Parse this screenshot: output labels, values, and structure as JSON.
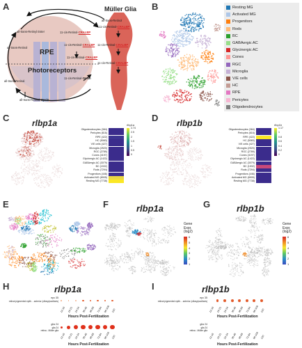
{
  "panels": {
    "A": "A",
    "B": "B",
    "C": "C",
    "D": "D",
    "E": "E",
    "F": "F",
    "G": "G",
    "H": "H",
    "I": "I"
  },
  "panel_a": {
    "muller_title": "Müller Glia",
    "rpe": "RPE",
    "photoreceptors": "Photoreceptors",
    "labels": {
      "ester": "all-trans-Retinyl Ester",
      "cis_ret_cralbp": "11-cis-Retinol-",
      "retinol": "all-trans-Retinol",
      "cis_ret_cralbp2": "11-cis-Retinol-",
      "cis_ret_cralbp_m1": "11-cis-Retinol-",
      "cis_ral_cralbp_m": "11-cis-Retinal-",
      "cis_ral_cralbp_m2": "11-cis-Retinal-",
      "cis_ral_cralbp_rpe": "11-cis-Retinal-",
      "retinal": "all-trans-Retinal",
      "cis_ral_opsin": "11-cis-Retinal-",
      "ret_opsin": "all-trans-Retinal-",
      "mg_retinol": "all-trans-Retinol",
      "cralbp": "CRALBP",
      "opsin": "Opsin"
    }
  },
  "legend_b": [
    {
      "label": "Resting MG",
      "color": "#1f77b4"
    },
    {
      "label": "Activated MG",
      "color": "#aec7e8"
    },
    {
      "label": "Progenitors",
      "color": "#ff7f0e"
    },
    {
      "label": "Rods",
      "color": "#ffbb78"
    },
    {
      "label": "BC",
      "color": "#2ca02c"
    },
    {
      "label": "GABAergic AC",
      "color": "#98df8a"
    },
    {
      "label": "Glycinergic AC",
      "color": "#d62728"
    },
    {
      "label": "Cones",
      "color": "#ff9896"
    },
    {
      "label": "RGC",
      "color": "#9467bd"
    },
    {
      "label": "Microglia",
      "color": "#c5b0d5"
    },
    {
      "label": "V/E cells",
      "color": "#8c564b"
    },
    {
      "label": "HC",
      "color": "#c49c94"
    },
    {
      "label": "RPE",
      "color": "#e377c2"
    },
    {
      "label": "Pericytes",
      "color": "#f7b6d2"
    },
    {
      "label": "Oligodendrocytes",
      "color": "#7f7f7f"
    }
  ],
  "panel_c": {
    "gene": "rlbp1a",
    "scale_title": "rlbp1a",
    "scale_ticks": [
      "2.74",
      "2.5",
      "2",
      "1.5",
      "1",
      "0.5",
      "0"
    ],
    "rows": [
      "Oligodendrocytes (384)",
      "Pericytes (616)",
      "RPE (422)",
      "HC (5083)",
      "V/E cells (427)",
      "Microglia (2520)",
      "RGC (2789)",
      "Cones (4197)",
      "Glycinergic AC (1422)",
      "GABAergic AC (3079)",
      "BC (1532)",
      "Rods (7294)",
      "Progenitors (446)",
      "Activated MG (8905)",
      "Resting MG (7738)"
    ],
    "colors": [
      "#3b2c8c",
      "#3b2c8c",
      "#3d3591",
      "#3b2c8c",
      "#3b2c8c",
      "#3b2c8c",
      "#3b2c8c",
      "#3b2c8c",
      "#3b2c8c",
      "#3b2c8c",
      "#3b2c8c",
      "#3b2c8c",
      "#3b2c8c",
      "#e9d742",
      "#fbe725"
    ]
  },
  "panel_d": {
    "gene": "rlbp1b",
    "scale_title": "rlbp1b",
    "scale_ticks": [
      "1.17",
      "1",
      "0.8",
      "0.6",
      "0.4",
      "0.2",
      "0"
    ],
    "rows": [
      "Oligodendrocytes (384)",
      "Pericytes (616)",
      "RPE (422)",
      "HC (5083)",
      "V/E cells (427)",
      "Microglia (2520)",
      "RGC (2789)",
      "Cones (4197)",
      "Glycinergic AC (1422)",
      "GABAergic AC (3079)",
      "BC (1532)",
      "Rods (7294)",
      "Progenitors (446)",
      "Activated MG (8905)",
      "Resting MG (7738)"
    ],
    "colors": [
      "#3b2c8c",
      "#3b2c8c",
      "#fbe725",
      "#3b2c8c",
      "#3b2c8c",
      "#3b2c8c",
      "#3b2c8c",
      "#3b2c8c",
      "#3b2c8c",
      "#3b2c8c",
      "#c9497a",
      "#3b2c8c",
      "#3b2c8c",
      "#3b2c8c",
      "#3b2c8c"
    ]
  },
  "panel_f": {
    "gene": "rlbp1a",
    "scale_title": "Gene Expr. (log2)",
    "ticks": [
      "6",
      "5",
      "4",
      "3",
      "2",
      "1"
    ]
  },
  "panel_g": {
    "gene": "rlbp1b",
    "scale_title": "Gene Expr. (log2)",
    "ticks": [
      "6",
      "5",
      "4",
      "3",
      "2",
      "1"
    ]
  },
  "panel_h": {
    "gene": "rlbp1a",
    "rows": [
      "retinal pigmented epith. - anterior (ciliary/paciliaris)",
      "glia 24\nretina - Müller glia"
    ],
    "row1_short": "epc 35",
    "row2_short": "glia 24",
    "xlabel": "Hours Post-Fertilization",
    "ticks": [
      "12-16",
      "19-21",
      "24-34",
      "36-46",
      "48-58",
      "72-84",
      "96-106",
      "120"
    ]
  },
  "panel_i": {
    "gene": "rlbp1b",
    "rows": [
      "retinal pigmented epith. - anterior (ciliary/paciliaris)",
      "glia 24\nretina - Müller glia"
    ],
    "row1_short": "epc 35",
    "row2_short": "glia 24",
    "xlabel": "Hours Post-Fertilization",
    "ticks": [
      "12-16",
      "19-21",
      "24-34",
      "36-46",
      "48-58",
      "72-84",
      "96-106",
      "120"
    ]
  }
}
